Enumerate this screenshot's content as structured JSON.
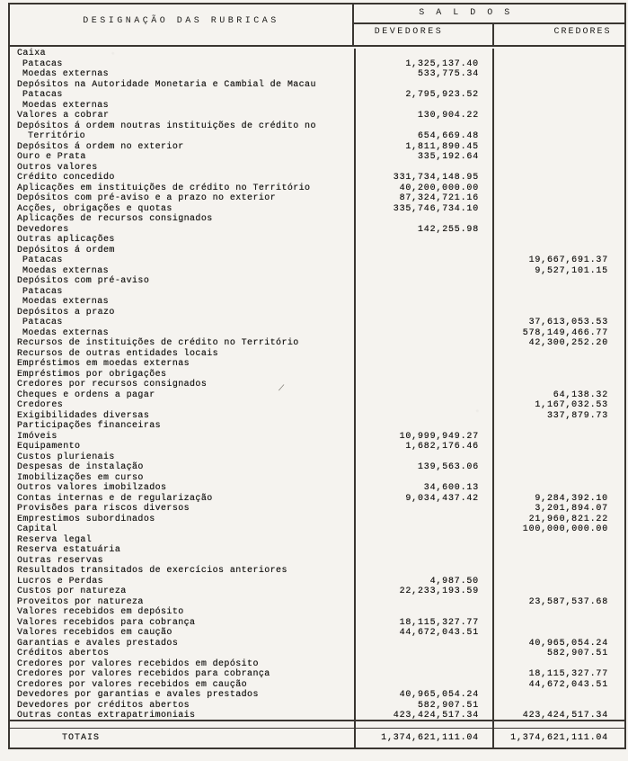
{
  "header": {
    "designacao": "DESIGNAÇÃO DAS RUBRICAS",
    "saldos": "S A L D O S",
    "devedores": "DEVEDORES",
    "credores": "CREDORES"
  },
  "artifact": "/",
  "rows": [
    {
      "label": "Caixa",
      "indent": 0,
      "dev": "",
      "cred": ""
    },
    {
      "label": "Patacas",
      "indent": 1,
      "dev": "1,325,137.40",
      "cred": ""
    },
    {
      "label": "Moedas externas",
      "indent": 1,
      "dev": "533,775.34",
      "cred": ""
    },
    {
      "label": "Depósitos na Autoridade Monetaria e Cambial de Macau",
      "indent": 0,
      "dev": "",
      "cred": ""
    },
    {
      "label": "Patacas",
      "indent": 1,
      "dev": "2,795,923.52",
      "cred": ""
    },
    {
      "label": "Moedas externas",
      "indent": 1,
      "dev": "",
      "cred": ""
    },
    {
      "label": "Valores a cobrar",
      "indent": 0,
      "dev": "130,904.22",
      "cred": ""
    },
    {
      "label": "Depósitos á ordem noutras instituições de crédito no",
      "indent": 0,
      "dev": "",
      "cred": ""
    },
    {
      "label": "Território",
      "indent": 2,
      "dev": "654,669.48",
      "cred": ""
    },
    {
      "label": "Depósitos á ordem no exterior",
      "indent": 0,
      "dev": "1,811,890.45",
      "cred": ""
    },
    {
      "label": "Ouro e Prata",
      "indent": 0,
      "dev": "335,192.64",
      "cred": ""
    },
    {
      "label": "Outros valores",
      "indent": 0,
      "dev": "",
      "cred": ""
    },
    {
      "label": "Crédito concedido",
      "indent": 0,
      "dev": "331,734,148.95",
      "cred": ""
    },
    {
      "label": "Aplicações em instituições de crédito no Território",
      "indent": 0,
      "dev": "40,200,000.00",
      "cred": ""
    },
    {
      "label": "Depósitos com pré-aviso e a prazo no exterior",
      "indent": 0,
      "dev": "87,324,721.16",
      "cred": ""
    },
    {
      "label": "Acções, obrigações e quotas",
      "indent": 0,
      "dev": "335,746,734.10",
      "cred": ""
    },
    {
      "label": "Aplicações de recursos consignados",
      "indent": 0,
      "dev": "",
      "cred": ""
    },
    {
      "label": "Devedores",
      "indent": 0,
      "dev": "142,255.98",
      "cred": ""
    },
    {
      "label": "Outras aplicações",
      "indent": 0,
      "dev": "",
      "cred": ""
    },
    {
      "label": "Depósitos á ordem",
      "indent": 0,
      "dev": "",
      "cred": ""
    },
    {
      "label": "Patacas",
      "indent": 1,
      "dev": "",
      "cred": "19,667,691.37"
    },
    {
      "label": "Moedas externas",
      "indent": 1,
      "dev": "",
      "cred": "9,527,101.15"
    },
    {
      "label": "Depósitos com pré-aviso",
      "indent": 0,
      "dev": "",
      "cred": ""
    },
    {
      "label": "Patacas",
      "indent": 1,
      "dev": "",
      "cred": ""
    },
    {
      "label": "Moedas externas",
      "indent": 1,
      "dev": "",
      "cred": ""
    },
    {
      "label": "Depósitos a prazo",
      "indent": 0,
      "dev": "",
      "cred": ""
    },
    {
      "label": "Patacas",
      "indent": 1,
      "dev": "",
      "cred": "37,613,053.53"
    },
    {
      "label": "Moedas externas",
      "indent": 1,
      "dev": "",
      "cred": "578,149,466.77"
    },
    {
      "label": "Recursos de instituições de crédito no Território",
      "indent": 0,
      "dev": "",
      "cred": "42,300,252.20"
    },
    {
      "label": "Recursos de outras entidades locais",
      "indent": 0,
      "dev": "",
      "cred": ""
    },
    {
      "label": "Empréstimos em moedas externas",
      "indent": 0,
      "dev": "",
      "cred": ""
    },
    {
      "label": "Empréstimos por obrigações",
      "indent": 0,
      "dev": "",
      "cred": ""
    },
    {
      "label": "Credores por recursos consignados",
      "indent": 0,
      "dev": "",
      "cred": ""
    },
    {
      "label": "Cheques e ordens a pagar",
      "indent": 0,
      "dev": "",
      "cred": "64,138.32"
    },
    {
      "label": "Credores",
      "indent": 0,
      "dev": "",
      "cred": "1,167,032.53"
    },
    {
      "label": "Exigibilidades diversas",
      "indent": 0,
      "dev": "",
      "cred": "337,879.73"
    },
    {
      "label": "Participações financeiras",
      "indent": 0,
      "dev": "",
      "cred": ""
    },
    {
      "label": "Imóveis",
      "indent": 0,
      "dev": "10,999,949.27",
      "cred": ""
    },
    {
      "label": "Equipamento",
      "indent": 0,
      "dev": "1,682,176.46",
      "cred": ""
    },
    {
      "label": "Custos plurienais",
      "indent": 0,
      "dev": "",
      "cred": ""
    },
    {
      "label": "Despesas de instalação",
      "indent": 0,
      "dev": "139,563.06",
      "cred": ""
    },
    {
      "label": "Imobilizações em curso",
      "indent": 0,
      "dev": "",
      "cred": ""
    },
    {
      "label": "Outros valores imobilzados",
      "indent": 0,
      "dev": "34,600.13",
      "cred": ""
    },
    {
      "label": "Contas internas e de regularização",
      "indent": 0,
      "dev": "9,034,437.42",
      "cred": "9,284,392.10"
    },
    {
      "label": "Provisões para riscos diversos",
      "indent": 0,
      "dev": "",
      "cred": "3,201,894.07"
    },
    {
      "label": "Emprestimos subordinados",
      "indent": 0,
      "dev": "",
      "cred": "21,960,821.22"
    },
    {
      "label": "Capital",
      "indent": 0,
      "dev": "",
      "cred": "100,000,000.00"
    },
    {
      "label": "Reserva legal",
      "indent": 0,
      "dev": "",
      "cred": ""
    },
    {
      "label": "Reserva estatuária",
      "indent": 0,
      "dev": "",
      "cred": ""
    },
    {
      "label": "Outras reservas",
      "indent": 0,
      "dev": "",
      "cred": ""
    },
    {
      "label": "Resultados transitados de exercícios anteriores",
      "indent": 0,
      "dev": "",
      "cred": ""
    },
    {
      "label": "Lucros e Perdas",
      "indent": 0,
      "dev": "4,987.50",
      "cred": ""
    },
    {
      "label": "Custos por natureza",
      "indent": 0,
      "dev": "22,233,193.59",
      "cred": ""
    },
    {
      "label": "Proveitos por natureza",
      "indent": 0,
      "dev": "",
      "cred": "23,587,537.68"
    },
    {
      "label": "Valores recebidos em depósito",
      "indent": 0,
      "dev": "",
      "cred": ""
    },
    {
      "label": "Valores recebidos para cobrança",
      "indent": 0,
      "dev": "18,115,327.77",
      "cred": ""
    },
    {
      "label": "Valores recebidos em caução",
      "indent": 0,
      "dev": "44,672,043.51",
      "cred": ""
    },
    {
      "label": "Garantias e avales prestados",
      "indent": 0,
      "dev": "",
      "cred": "40,965,054.24"
    },
    {
      "label": "Créditos abertos",
      "indent": 0,
      "dev": "",
      "cred": "582,907.51"
    },
    {
      "label": "Credores por valores recebidos em depósito",
      "indent": 0,
      "dev": "",
      "cred": ""
    },
    {
      "label": "Credores por valores recebidos para cobrança",
      "indent": 0,
      "dev": "",
      "cred": "18,115,327.77"
    },
    {
      "label": "Credores por valores recebidos em caução",
      "indent": 0,
      "dev": "",
      "cred": "44,672,043.51"
    },
    {
      "label": "Devedores por garantias e avales prestados",
      "indent": 0,
      "dev": "40,965,054.24",
      "cred": ""
    },
    {
      "label": "Devedores por créditos abertos",
      "indent": 0,
      "dev": "582,907.51",
      "cred": ""
    },
    {
      "label": "Outras contas extrapatrimoniais",
      "indent": 0,
      "dev": "423,424,517.34",
      "cred": "423,424,517.34"
    }
  ],
  "totals": {
    "label": "TOTAIS",
    "dev": "1,374,621,111.04",
    "cred": "1,374,621,111.04"
  }
}
